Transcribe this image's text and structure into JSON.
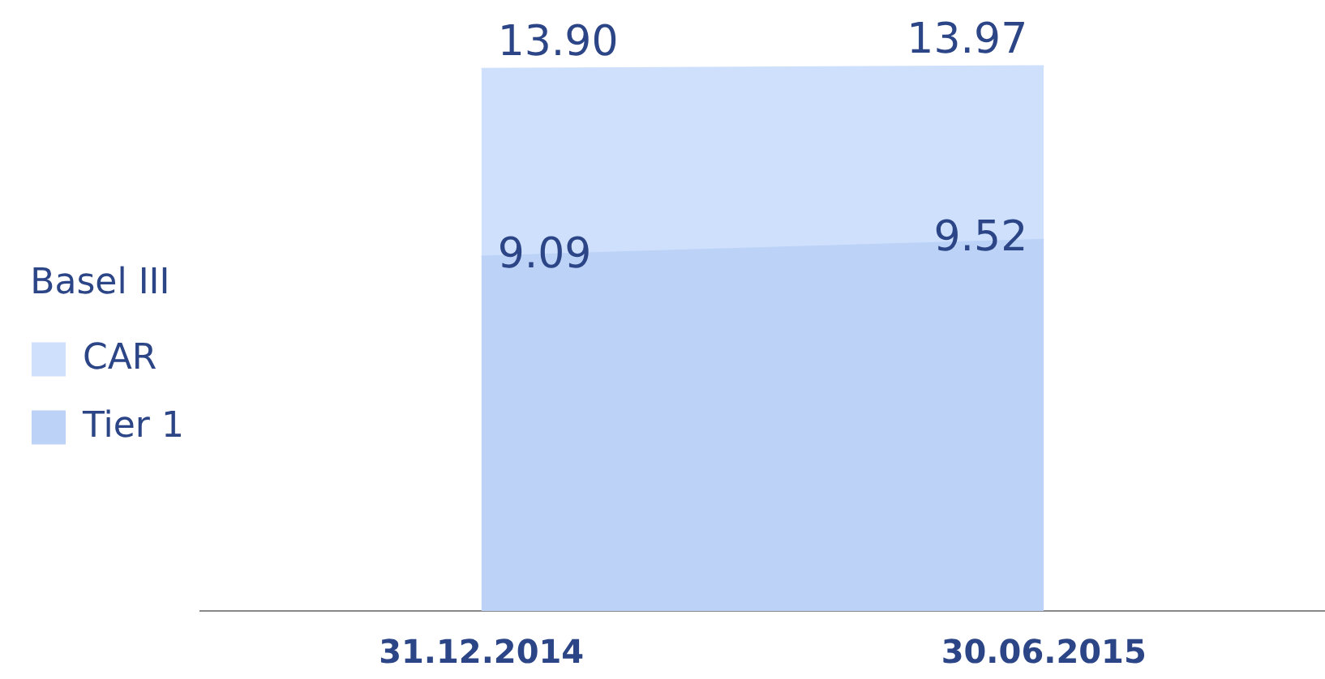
{
  "chart_data": {
    "type": "area",
    "legend_title": "Basel III",
    "categories": [
      "31.12.2014",
      "30.06.2015"
    ],
    "series": [
      {
        "name": "CAR",
        "color": "#cfe0fc",
        "values": [
          13.9,
          13.97
        ],
        "value_labels": [
          "13.90",
          "13.97"
        ]
      },
      {
        "name": "Tier 1",
        "color": "#bcd2f7",
        "values": [
          9.09,
          9.52
        ],
        "value_labels": [
          "9.09",
          "9.52"
        ]
      }
    ],
    "legend": "left",
    "grid": false
  }
}
